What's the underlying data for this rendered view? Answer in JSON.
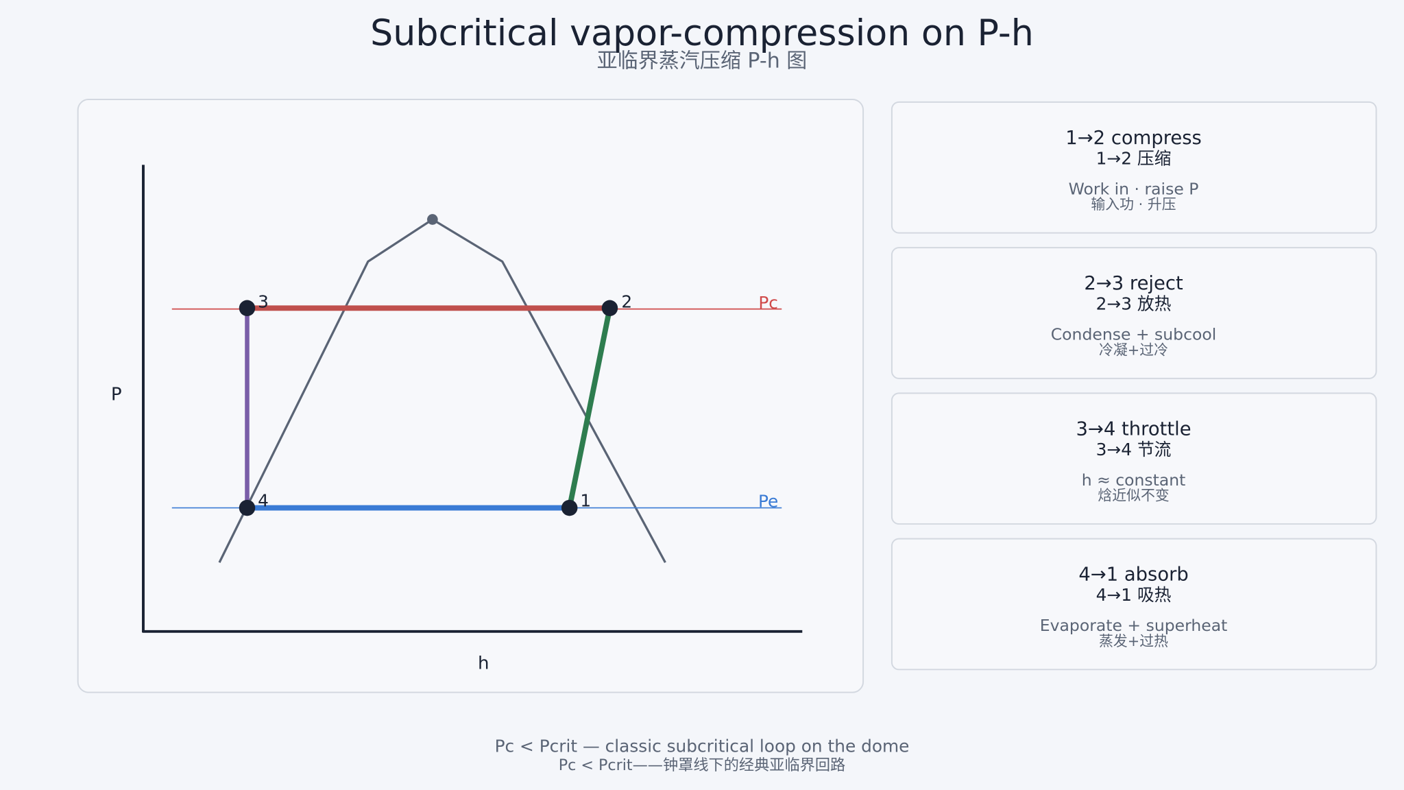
{
  "header": {
    "title": "Subcritical vapor-compression on P-h",
    "subtitle": "亚临界蒸汽压缩 P-h 图"
  },
  "diagram": {
    "y_axis_label": "P",
    "x_axis_label": "h",
    "lines": [
      {
        "label": "Pc"
      },
      {
        "label": "Pe"
      }
    ],
    "points": [
      {
        "label": "1"
      },
      {
        "label": "2"
      },
      {
        "label": "3"
      },
      {
        "label": "4"
      }
    ]
  },
  "cards": [
    {
      "title": "1→2 compress",
      "title_zh": "1→2 压缩",
      "desc": "Work in · raise P",
      "desc_zh": "输入功 · 升压"
    },
    {
      "title": "2→3 reject",
      "title_zh": "2→3 放热",
      "desc": "Condense + subcool",
      "desc_zh": "冷凝+过冷"
    },
    {
      "title": "3→4 throttle",
      "title_zh": "3→4 节流",
      "desc": "h ≈ constant",
      "desc_zh": "焓近似不变"
    },
    {
      "title": "4→1 absorb",
      "title_zh": "4→1 吸热",
      "desc": "Evaporate + superheat",
      "desc_zh": "蒸发+过热"
    }
  ],
  "footer": {
    "line1": "Pc < Pcrit — classic subcritical loop on the dome",
    "line2": "Pc < Pcrit——钟罩线下的经典亚临界回路"
  }
}
